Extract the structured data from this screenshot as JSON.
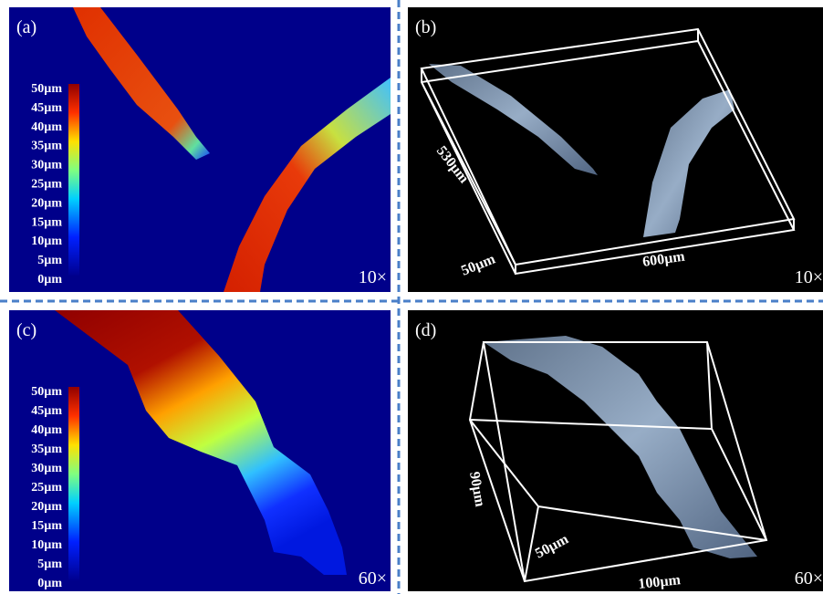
{
  "panels": [
    {
      "label": "(a)",
      "magnification": "10×",
      "colorbar": [
        "50µm",
        "45µm",
        "40µm",
        "35µm",
        "30µm",
        "25µm",
        "20µm",
        "15µm",
        "10µm",
        "5µm",
        "0µm"
      ]
    },
    {
      "label": "(b)",
      "magnification": "10×",
      "dimensions": [
        "530µm",
        "50µm",
        "600µm"
      ]
    },
    {
      "label": "(c)",
      "magnification": "60×",
      "colorbar": [
        "50µm",
        "45µm",
        "40µm",
        "35µm",
        "30µm",
        "25µm",
        "20µm",
        "15µm",
        "10µm",
        "5µm",
        "0µm"
      ]
    },
    {
      "label": "(d)",
      "magnification": "60×",
      "dimensions": [
        "90µm",
        "50µm",
        "100µm"
      ]
    }
  ]
}
